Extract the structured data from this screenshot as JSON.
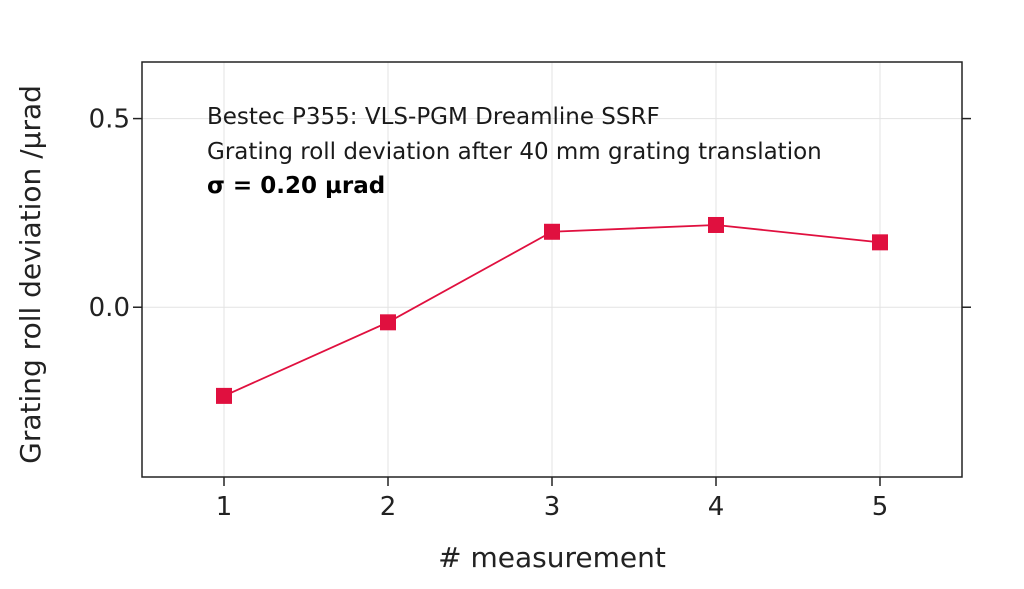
{
  "chart_data": {
    "type": "line",
    "title": "",
    "xlabel": "# measurement",
    "ylabel": "Grating roll deviation /µrad",
    "x": [
      1,
      2,
      3,
      4,
      5
    ],
    "series": [
      {
        "name": "",
        "values": [
          -0.235,
          -0.04,
          0.2,
          0.218,
          0.172
        ],
        "color": "#e0103f",
        "marker": "square"
      }
    ],
    "xlim": [
      0.5,
      5.5
    ],
    "ylim": [
      -0.45,
      0.65
    ],
    "xticks": [
      "1",
      "2",
      "3",
      "4",
      "5"
    ],
    "yticks": [
      {
        "value": 0.5,
        "label": "0.5"
      },
      {
        "value": 0.0,
        "label": "0.0"
      }
    ],
    "grid": true,
    "legend": "none",
    "annotations": [
      "Bestec P355: VLS-PGM Dreamline SSRF",
      "Grating roll deviation after 40 mm grating translation"
    ],
    "sigma_annotation": {
      "symbol": "σ",
      "text": " = 0.20 µrad"
    }
  }
}
